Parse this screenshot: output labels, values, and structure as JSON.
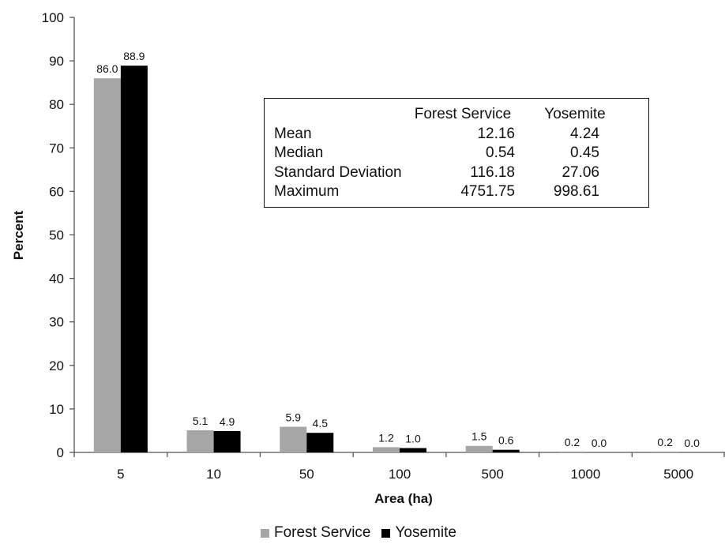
{
  "chart_data": {
    "type": "bar",
    "title": "",
    "xlabel": "Area (ha)",
    "ylabel": "Percent",
    "ylim": [
      0,
      100
    ],
    "yticks": [
      "0",
      "10",
      "20",
      "30",
      "40",
      "50",
      "60",
      "70",
      "80",
      "90",
      "100"
    ],
    "categories": [
      "5",
      "10",
      "50",
      "100",
      "500",
      "1000",
      "5000"
    ],
    "series": [
      {
        "name": "Forest Service",
        "color": "#a6a6a6",
        "values": [
          86.0,
          5.1,
          5.9,
          1.2,
          1.5,
          0.2,
          0.2
        ],
        "labels": [
          "86.0",
          "5.1",
          "5.9",
          "1.2",
          "1.5",
          "0.2",
          "0.2"
        ]
      },
      {
        "name": "Yosemite",
        "color": "#000000",
        "values": [
          88.9,
          4.9,
          4.5,
          1.0,
          0.6,
          0.0,
          0.0
        ],
        "labels": [
          "88.9",
          "4.9",
          "4.5",
          "1.0",
          "0.6",
          "0.0",
          "0.0"
        ]
      }
    ],
    "grid": false,
    "legend_position": "bottom",
    "stats_table": {
      "headers": [
        "Forest Service",
        "Yosemite"
      ],
      "rows": [
        {
          "label": "Mean",
          "values": [
            "12.16",
            "4.24"
          ]
        },
        {
          "label": "Median",
          "values": [
            "0.54",
            "0.45"
          ]
        },
        {
          "label": "Standard Deviation",
          "values": [
            "116.18",
            "27.06"
          ]
        },
        {
          "label": "Maximum",
          "values": [
            "4751.75",
            "998.61"
          ]
        }
      ]
    }
  }
}
